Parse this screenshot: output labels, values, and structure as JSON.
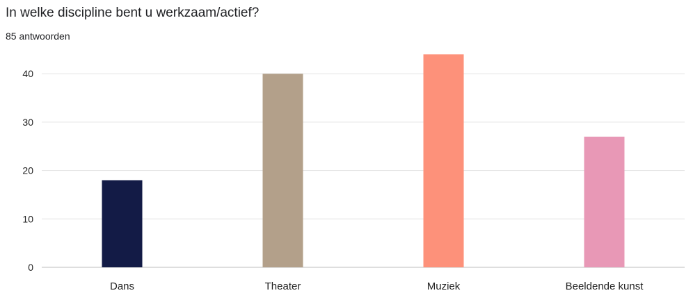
{
  "header": {
    "title": "In welke discipline bent u werkzaam/actief?",
    "subtitle": "85 antwoorden"
  },
  "chart_data": {
    "type": "bar",
    "title": "In welke discipline bent u werkzaam/actief?",
    "subtitle": "85 antwoorden",
    "xlabel": "",
    "ylabel": "",
    "categories": [
      "Dans",
      "Theater",
      "Muziek",
      "Beeldende kunst"
    ],
    "values": [
      18,
      40,
      44,
      27
    ],
    "colors": [
      "#131b46",
      "#b3a08a",
      "#fd917a",
      "#e898b6"
    ],
    "ylim": [
      0,
      44
    ],
    "yticks": [
      0,
      10,
      20,
      30,
      40
    ],
    "grid": true,
    "legend": "none",
    "gridline_color": "#e3e3e3",
    "axis_color": "#bdbdbd"
  }
}
